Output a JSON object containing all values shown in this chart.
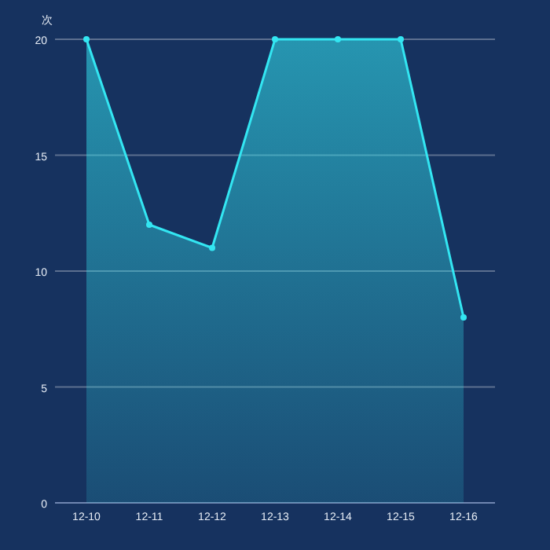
{
  "chart_data": {
    "type": "area",
    "ylabel": "次",
    "categories": [
      "12-10",
      "12-11",
      "12-12",
      "12-13",
      "12-14",
      "12-15",
      "12-16"
    ],
    "series": [
      {
        "color": "#33e6f2",
        "values": [
          20,
          12,
          11,
          20,
          20,
          20,
          8
        ]
      }
    ],
    "ylim": [
      0,
      20
    ],
    "yticks": [
      0,
      5,
      10,
      15,
      20
    ],
    "grid": "y",
    "marker": "circle",
    "line_style": "solid"
  }
}
